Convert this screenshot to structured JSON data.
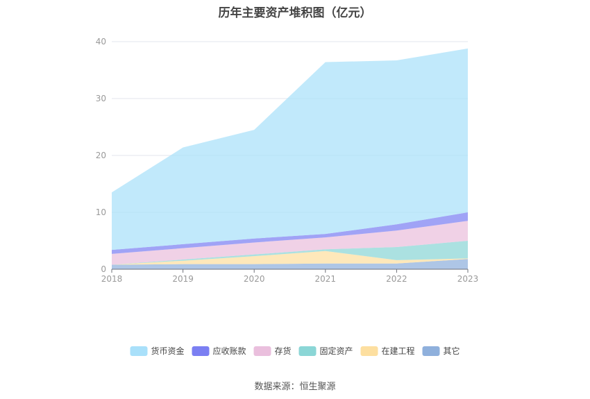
{
  "title": "历年主要资产堆积图（亿元）",
  "source": "数据来源：恒生聚源",
  "chart_data": {
    "type": "area",
    "stacked": true,
    "title": "历年主要资产堆积图（亿元）",
    "x": [
      "2018",
      "2019",
      "2020",
      "2021",
      "2022",
      "2023"
    ],
    "ylim": [
      0,
      40
    ],
    "yticks": [
      "0",
      "10",
      "20",
      "30",
      "40"
    ],
    "grid": true,
    "legend_position": "bottom",
    "series": [
      {
        "name": "其它",
        "color": "#8fb0dc",
        "values": [
          0.8,
          0.9,
          0.9,
          1.0,
          1.0,
          1.8
        ]
      },
      {
        "name": "在建工程",
        "color": "#fddfa0",
        "values": [
          0.0,
          0.6,
          1.4,
          2.2,
          0.6,
          0.1
        ]
      },
      {
        "name": "固定资产",
        "color": "#8bd6d6",
        "values": [
          0.0,
          0.2,
          0.3,
          0.3,
          2.3,
          3.1
        ]
      },
      {
        "name": "存货",
        "color": "#eabfdd",
        "values": [
          1.9,
          2.0,
          2.1,
          2.1,
          2.9,
          3.5
        ]
      },
      {
        "name": "应收账款",
        "color": "#7b7ff2",
        "values": [
          0.7,
          0.7,
          0.7,
          0.6,
          1.1,
          1.5
        ]
      },
      {
        "name": "货币资金",
        "color": "#a9e0fa",
        "values": [
          10.1,
          17.0,
          19.1,
          30.2,
          28.8,
          28.8
        ]
      }
    ],
    "legend_order": [
      "货币资金",
      "应收账款",
      "存货",
      "固定资产",
      "在建工程",
      "其它"
    ]
  }
}
